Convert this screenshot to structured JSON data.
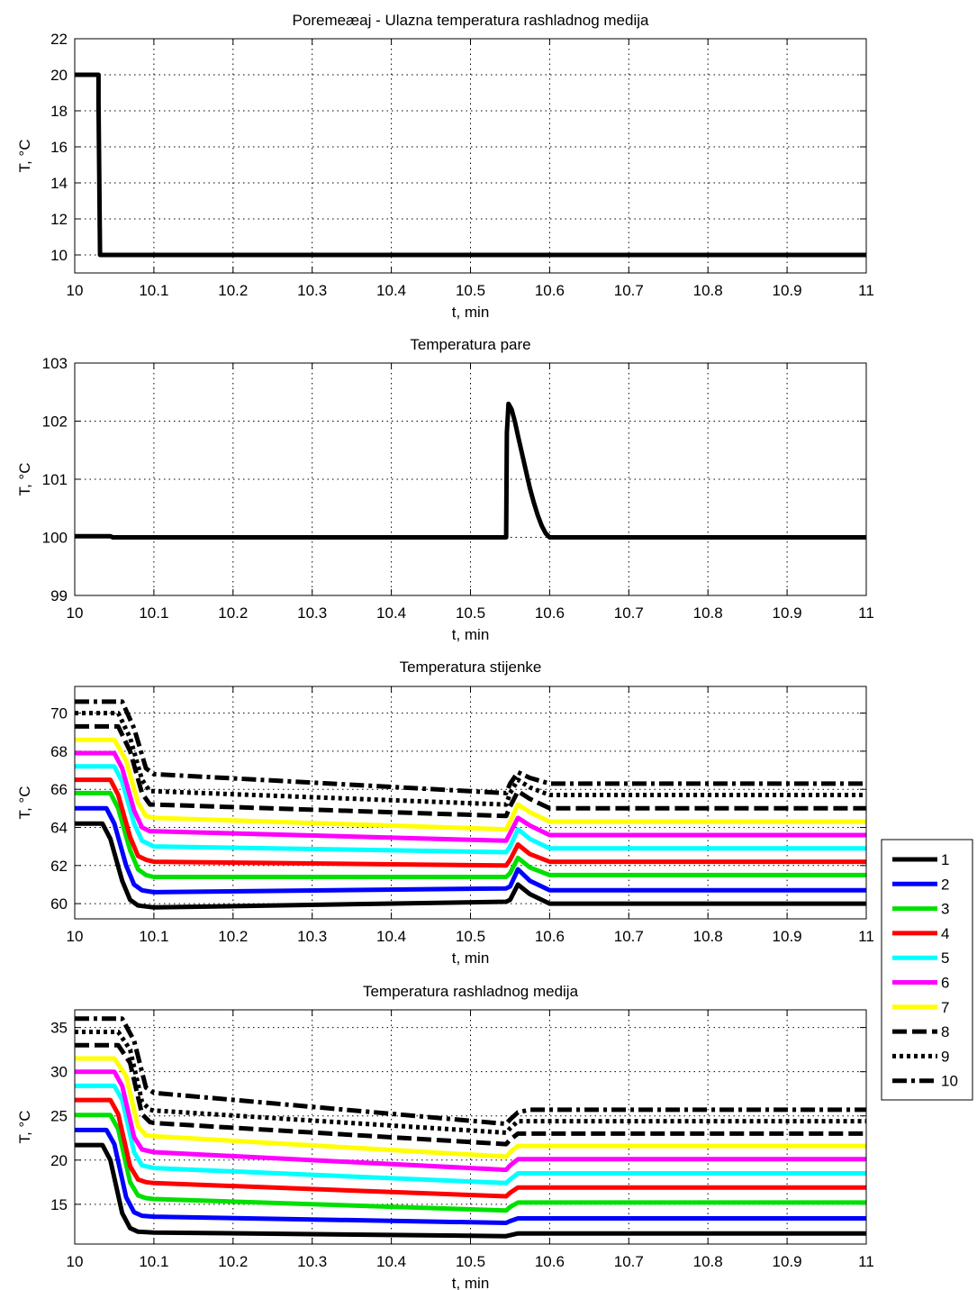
{
  "chart_data": [
    {
      "type": "line",
      "title": "Poremeæaj - Ulazna temperatura rashladnog medija",
      "xlabel": "t, min",
      "ylabel": "T, °C",
      "xlim": [
        10,
        11
      ],
      "ylim": [
        9,
        22
      ],
      "xticks": [
        "10",
        "10.1",
        "10.2",
        "10.3",
        "10.4",
        "10.5",
        "10.6",
        "10.7",
        "10.8",
        "10.9",
        "11"
      ],
      "yticks": [
        "10",
        "12",
        "14",
        "16",
        "18",
        "20",
        "22"
      ],
      "grid": true,
      "series": [
        {
          "x": [
            10,
            10.03,
            10.03,
            10.032,
            11
          ],
          "y": [
            20,
            20,
            18.5,
            10,
            10
          ]
        }
      ]
    },
    {
      "type": "line",
      "title": "Temperatura pare",
      "xlabel": "t, min",
      "ylabel": "T, °C",
      "xlim": [
        10,
        11
      ],
      "ylim": [
        99,
        103
      ],
      "xticks": [
        "10",
        "10.1",
        "10.2",
        "10.3",
        "10.4",
        "10.5",
        "10.6",
        "10.7",
        "10.8",
        "10.9",
        "11"
      ],
      "yticks": [
        "99",
        "100",
        "101",
        "102",
        "103"
      ],
      "grid": true,
      "series": [
        {
          "x": [
            10,
            10.045,
            10.048,
            10.545,
            10.546,
            10.548,
            10.552,
            10.556,
            10.56,
            10.565,
            10.57,
            10.575,
            10.58,
            10.585,
            10.59,
            10.595,
            10.6,
            11
          ],
          "y": [
            100.02,
            100.02,
            100.0,
            100.0,
            101.8,
            102.3,
            102.2,
            102.0,
            101.75,
            101.45,
            101.15,
            100.85,
            100.6,
            100.38,
            100.2,
            100.07,
            100.0,
            100.0
          ]
        }
      ]
    },
    {
      "type": "line",
      "title": "Temperatura stijenke",
      "xlabel": "t, min",
      "ylabel": "T, °C",
      "xlim": [
        10,
        11
      ],
      "ylim": [
        59.2,
        71.4
      ],
      "xticks": [
        "10",
        "10.1",
        "10.2",
        "10.3",
        "10.4",
        "10.5",
        "10.6",
        "10.7",
        "10.8",
        "10.9",
        "11"
      ],
      "yticks": [
        "60",
        "62",
        "64",
        "66",
        "68",
        "70"
      ],
      "grid": true,
      "legend": "outside-right",
      "series": [
        {
          "name": "1",
          "color": "#000000",
          "dash": "solid",
          "x": [
            10,
            10.035,
            10.045,
            10.06,
            10.07,
            10.08,
            10.1,
            10.545,
            10.55,
            10.56,
            10.575,
            10.6,
            11
          ],
          "y": [
            64.2,
            64.2,
            63.4,
            61.2,
            60.2,
            59.9,
            59.8,
            60.1,
            60.2,
            61.0,
            60.5,
            60.0,
            60.0
          ]
        },
        {
          "name": "2",
          "color": "#0000ff",
          "dash": "solid",
          "x": [
            10,
            10.04,
            10.05,
            10.065,
            10.075,
            10.085,
            10.1,
            10.545,
            10.55,
            10.56,
            10.575,
            10.6,
            11
          ],
          "y": [
            65.0,
            65.0,
            64.2,
            62.0,
            61.0,
            60.7,
            60.6,
            60.8,
            60.9,
            61.8,
            61.2,
            60.7,
            60.7
          ]
        },
        {
          "name": "3",
          "color": "#00e000",
          "dash": "solid",
          "x": [
            10,
            10.045,
            10.055,
            10.07,
            10.08,
            10.09,
            10.1,
            10.545,
            10.55,
            10.56,
            10.575,
            10.6,
            11
          ],
          "y": [
            65.8,
            65.8,
            65.0,
            62.8,
            61.8,
            61.5,
            61.4,
            61.4,
            61.6,
            62.4,
            61.9,
            61.5,
            61.5
          ]
        },
        {
          "name": "4",
          "color": "#ff0000",
          "dash": "solid",
          "x": [
            10,
            10.045,
            10.055,
            10.07,
            10.08,
            10.09,
            10.1,
            10.545,
            10.55,
            10.56,
            10.575,
            10.6,
            11
          ],
          "y": [
            66.5,
            66.5,
            65.7,
            63.5,
            62.5,
            62.3,
            62.2,
            62.0,
            62.3,
            63.1,
            62.6,
            62.2,
            62.2
          ]
        },
        {
          "name": "5",
          "color": "#00ffff",
          "dash": "solid",
          "x": [
            10,
            10.05,
            10.06,
            10.075,
            10.085,
            10.095,
            10.1,
            10.545,
            10.55,
            10.56,
            10.575,
            10.6,
            11
          ],
          "y": [
            67.2,
            67.2,
            66.4,
            64.2,
            63.3,
            63.1,
            63.0,
            62.7,
            63.0,
            63.9,
            63.4,
            62.9,
            62.9
          ]
        },
        {
          "name": "6",
          "color": "#ff00ff",
          "dash": "solid",
          "x": [
            10,
            10.05,
            10.06,
            10.075,
            10.085,
            10.095,
            10.1,
            10.545,
            10.55,
            10.56,
            10.575,
            10.6,
            11
          ],
          "y": [
            67.9,
            67.9,
            67.1,
            64.9,
            64.0,
            63.8,
            63.8,
            63.3,
            63.7,
            64.5,
            64.1,
            63.6,
            63.6
          ]
        },
        {
          "name": "7",
          "color": "#ffff00",
          "dash": "solid",
          "x": [
            10,
            10.05,
            10.065,
            10.08,
            10.09,
            10.1,
            10.545,
            10.55,
            10.56,
            10.575,
            10.6,
            11
          ],
          "y": [
            68.6,
            68.6,
            67.5,
            65.3,
            64.6,
            64.5,
            63.9,
            64.3,
            65.2,
            64.8,
            64.3,
            64.3
          ]
        },
        {
          "name": "8",
          "color": "#000000",
          "dash": "dashed",
          "x": [
            10,
            10.055,
            10.07,
            10.085,
            10.095,
            10.1,
            10.545,
            10.55,
            10.56,
            10.575,
            10.6,
            11
          ],
          "y": [
            69.3,
            69.3,
            68.0,
            65.8,
            65.2,
            65.2,
            64.6,
            65.1,
            65.9,
            65.5,
            65.0,
            65.0
          ]
        },
        {
          "name": "9",
          "color": "#000000",
          "dash": "dotted",
          "x": [
            10,
            10.055,
            10.07,
            10.085,
            10.095,
            10.1,
            10.545,
            10.55,
            10.56,
            10.575,
            10.6,
            11
          ],
          "y": [
            70.0,
            70.0,
            68.7,
            66.5,
            65.9,
            65.9,
            65.2,
            65.8,
            66.5,
            66.1,
            65.7,
            65.7
          ]
        },
        {
          "name": "10",
          "color": "#000000",
          "dash": "dashdot",
          "x": [
            10,
            10.06,
            10.075,
            10.09,
            10.1,
            10.545,
            10.55,
            10.56,
            10.575,
            10.6,
            11
          ],
          "y": [
            70.6,
            70.6,
            69.2,
            67.1,
            66.8,
            65.8,
            66.3,
            66.9,
            66.6,
            66.3,
            66.3
          ]
        }
      ]
    },
    {
      "type": "line",
      "title": "Temperatura rashladnog medija",
      "xlabel": "t, min",
      "ylabel": "T, °C",
      "xlim": [
        10,
        11
      ],
      "ylim": [
        10.5,
        37
      ],
      "xticks": [
        "10",
        "10.1",
        "10.2",
        "10.3",
        "10.4",
        "10.5",
        "10.6",
        "10.7",
        "10.8",
        "10.9",
        "11"
      ],
      "yticks": [
        "15",
        "20",
        "25",
        "30",
        "35"
      ],
      "grid": true,
      "series": [
        {
          "name": "1",
          "color": "#000000",
          "dash": "solid",
          "x": [
            10,
            10.035,
            10.045,
            10.06,
            10.07,
            10.08,
            10.1,
            10.545,
            10.55,
            10.56,
            10.6,
            11
          ],
          "y": [
            21.7,
            21.7,
            20.0,
            14.0,
            12.3,
            11.9,
            11.8,
            11.4,
            11.5,
            11.7,
            11.7,
            11.7
          ]
        },
        {
          "name": "2",
          "color": "#0000ff",
          "dash": "solid",
          "x": [
            10,
            10.04,
            10.05,
            10.065,
            10.075,
            10.085,
            10.1,
            10.545,
            10.55,
            10.56,
            10.6,
            11
          ],
          "y": [
            23.4,
            23.4,
            21.8,
            15.8,
            14.1,
            13.7,
            13.6,
            12.9,
            13.1,
            13.4,
            13.4,
            13.4
          ]
        },
        {
          "name": "3",
          "color": "#00e000",
          "dash": "solid",
          "x": [
            10,
            10.045,
            10.055,
            10.07,
            10.08,
            10.09,
            10.1,
            10.545,
            10.55,
            10.56,
            10.6,
            11
          ],
          "y": [
            25.1,
            25.1,
            23.5,
            17.5,
            16.0,
            15.7,
            15.6,
            14.3,
            14.7,
            15.2,
            15.2,
            15.2
          ]
        },
        {
          "name": "4",
          "color": "#ff0000",
          "dash": "solid",
          "x": [
            10,
            10.045,
            10.055,
            10.07,
            10.08,
            10.09,
            10.1,
            10.545,
            10.55,
            10.56,
            10.6,
            11
          ],
          "y": [
            26.8,
            26.8,
            25.2,
            19.3,
            17.8,
            17.5,
            17.4,
            15.9,
            16.3,
            16.9,
            16.9,
            16.9
          ]
        },
        {
          "name": "5",
          "color": "#00ffff",
          "dash": "solid",
          "x": [
            10,
            10.05,
            10.06,
            10.075,
            10.085,
            10.095,
            10.1,
            10.545,
            10.55,
            10.56,
            10.6,
            11
          ],
          "y": [
            28.4,
            28.4,
            26.8,
            20.9,
            19.4,
            19.2,
            19.1,
            17.4,
            17.8,
            18.5,
            18.5,
            18.5
          ]
        },
        {
          "name": "6",
          "color": "#ff00ff",
          "dash": "solid",
          "x": [
            10,
            10.05,
            10.06,
            10.075,
            10.085,
            10.095,
            10.1,
            10.545,
            10.55,
            10.56,
            10.6,
            11
          ],
          "y": [
            30.0,
            30.0,
            28.4,
            22.6,
            21.2,
            21.0,
            20.9,
            18.9,
            19.4,
            20.1,
            20.1,
            20.1
          ]
        },
        {
          "name": "7",
          "color": "#ffff00",
          "dash": "solid",
          "x": [
            10,
            10.05,
            10.065,
            10.08,
            10.09,
            10.1,
            10.545,
            10.55,
            10.56,
            10.6,
            11
          ],
          "y": [
            31.5,
            31.5,
            29.5,
            23.8,
            22.8,
            22.7,
            20.4,
            20.9,
            21.6,
            21.6,
            21.6
          ]
        },
        {
          "name": "8",
          "color": "#000000",
          "dash": "dashed",
          "x": [
            10,
            10.055,
            10.07,
            10.085,
            10.095,
            10.1,
            10.545,
            10.55,
            10.56,
            10.6,
            11
          ],
          "y": [
            33.0,
            33.0,
            31.0,
            25.2,
            24.3,
            24.2,
            21.8,
            22.3,
            23.0,
            23.0,
            23.0
          ]
        },
        {
          "name": "9",
          "color": "#000000",
          "dash": "dotted",
          "x": [
            10,
            10.055,
            10.07,
            10.085,
            10.095,
            10.1,
            10.545,
            10.55,
            10.56,
            10.6,
            11
          ],
          "y": [
            34.5,
            34.5,
            32.5,
            26.6,
            25.7,
            25.6,
            23.1,
            23.6,
            24.4,
            24.4,
            24.4
          ]
        },
        {
          "name": "10",
          "color": "#000000",
          "dash": "dashdot",
          "x": [
            10,
            10.06,
            10.075,
            10.09,
            10.1,
            10.545,
            10.55,
            10.56,
            10.575,
            10.6,
            11
          ],
          "y": [
            36.0,
            36.0,
            33.5,
            28.2,
            27.6,
            24.1,
            24.6,
            25.4,
            25.7,
            25.7,
            25.7
          ]
        }
      ]
    }
  ]
}
